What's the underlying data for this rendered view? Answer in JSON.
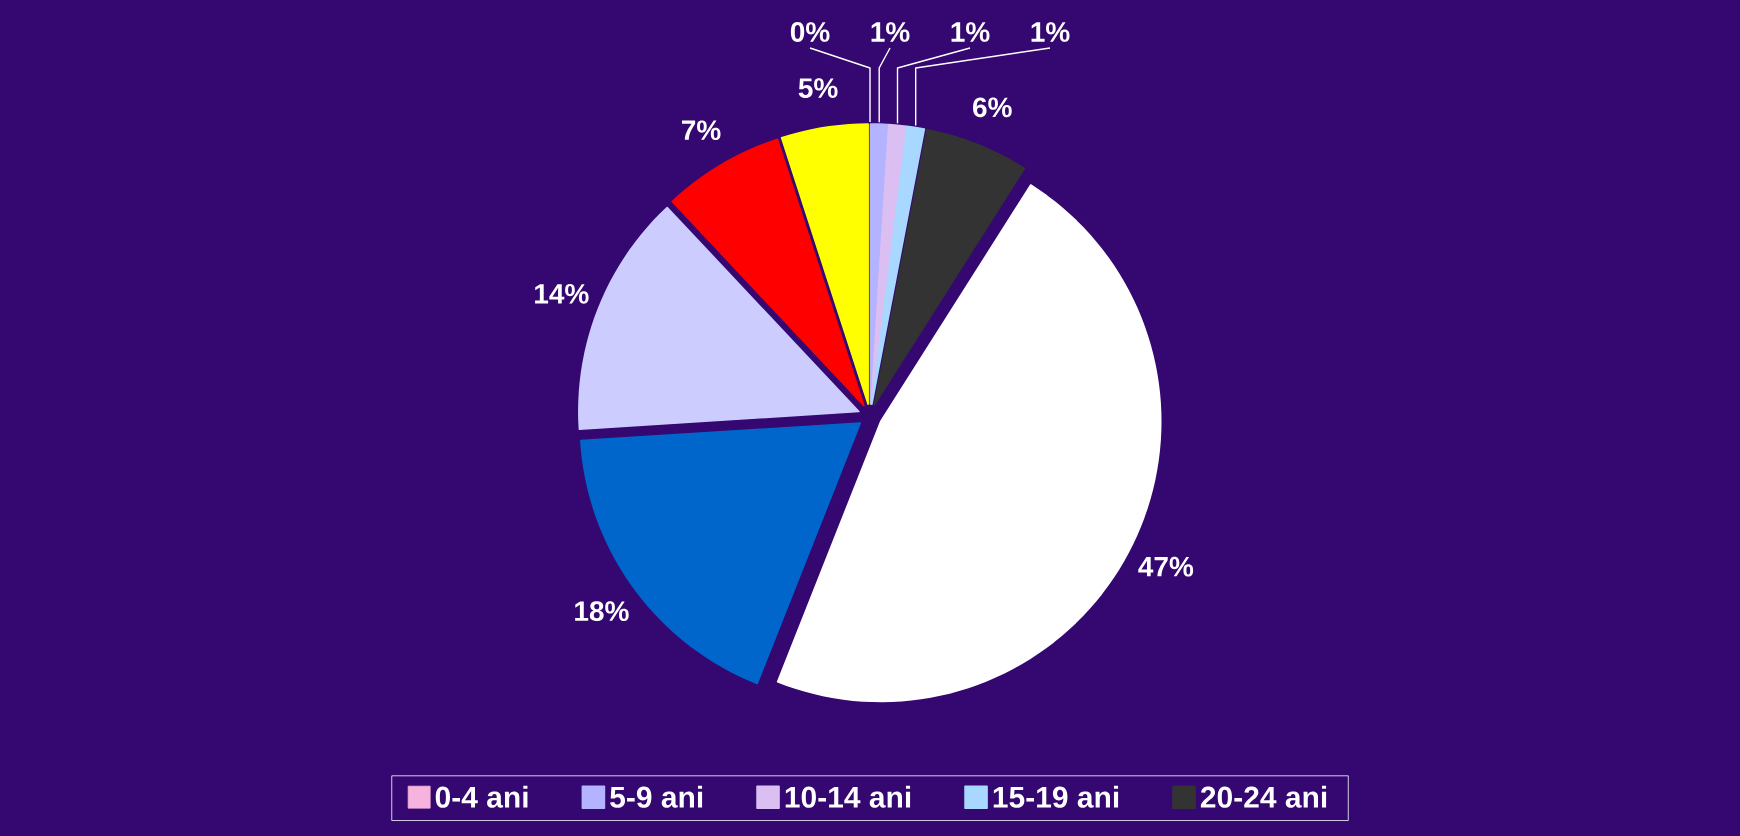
{
  "chart_data": {
    "type": "pie",
    "categories": [
      "0-4 ani",
      "5-9 ani",
      "10-14 ani",
      "15-19 ani",
      "20-24 ani",
      null,
      null,
      null,
      null,
      null
    ],
    "values": [
      0,
      1,
      1,
      1,
      6,
      47,
      18,
      14,
      7,
      5
    ],
    "colors": [
      "#f5b3dd",
      "#b3b3ff",
      "#dcbff2",
      "#a8d8ff",
      "#333333",
      "#ffffff",
      "#0066cc",
      "#ccccff",
      "#ff0000",
      "#ffff00"
    ],
    "value_labels": [
      "0%",
      "1%",
      "1%",
      "1%",
      "6%",
      "47%",
      "18%",
      "14%",
      "7%",
      "5%"
    ],
    "legend": "bottom"
  }
}
